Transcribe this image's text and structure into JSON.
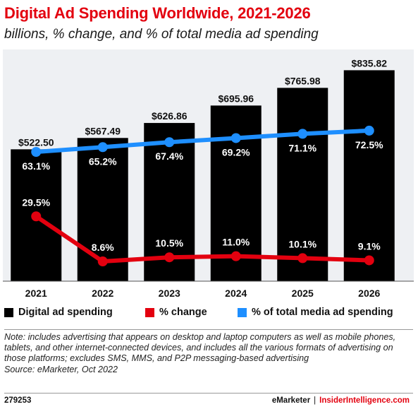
{
  "header": {
    "title": "Digital Ad Spending Worldwide, 2021-2026",
    "subtitle": "billions, % change, and % of total media ad spending"
  },
  "legend": {
    "items": [
      {
        "label": "Digital ad spending",
        "color": "#000000"
      },
      {
        "label": "% change",
        "color": "#e3000f"
      },
      {
        "label": "% of total media ad spending",
        "color": "#1e8fff"
      }
    ]
  },
  "chart_data": {
    "type": "bar",
    "categories": [
      "2021",
      "2022",
      "2023",
      "2024",
      "2025",
      "2026"
    ],
    "series": [
      {
        "name": "Digital ad spending",
        "type": "bar",
        "values": [
          522.5,
          567.49,
          626.86,
          695.96,
          765.98,
          835.82
        ],
        "labels": [
          "$522.50",
          "$567.49",
          "$626.86",
          "$695.96",
          "$765.98",
          "$835.82"
        ],
        "color": "#000000"
      },
      {
        "name": "% change",
        "type": "line",
        "values": [
          29.5,
          8.6,
          10.5,
          11.0,
          10.1,
          9.1
        ],
        "labels": [
          "29.5%",
          "8.6%",
          "10.5%",
          "11.0%",
          "10.1%",
          "9.1%"
        ],
        "color": "#e3000f"
      },
      {
        "name": "% of total media ad spending",
        "type": "line",
        "values": [
          63.1,
          65.2,
          67.4,
          69.2,
          71.1,
          72.5
        ],
        "labels": [
          "63.1%",
          "65.2%",
          "67.4%",
          "69.2%",
          "71.1%",
          "72.5%"
        ],
        "color": "#1e8fff"
      }
    ],
    "ylim": [
      0,
      900
    ],
    "legend_position": "bottom",
    "grid": false
  },
  "note": "Note: includes advertising that appears on desktop and laptop computers as well as mobile phones, tablets, and other internet-connected devices, and includes all the various formats of advertising on those platforms; excludes SMS, MMS, and P2P messaging-based advertising",
  "source": "Source: eMarketer, Oct 2022",
  "footer": {
    "chart_id": "279253",
    "brand_primary": "eMarketer",
    "separator": "|",
    "brand_secondary": "InsiderIntelligence.com"
  }
}
